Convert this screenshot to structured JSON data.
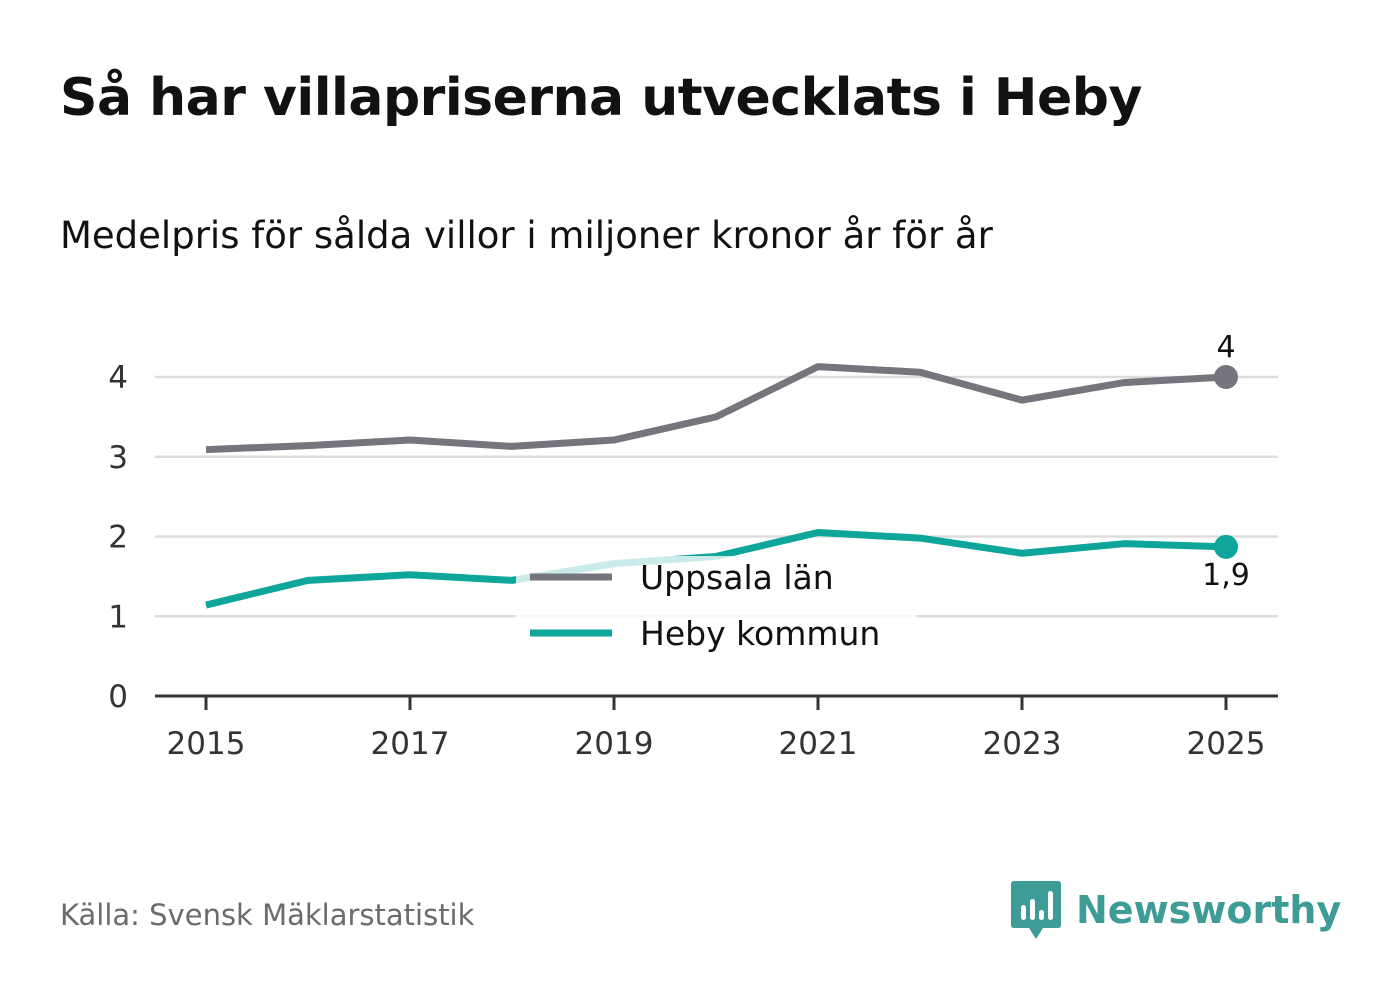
{
  "header": {
    "title": "Så har villapriserna utvecklats i Heby",
    "subtitle": "Medelpris för sålda villor i miljoner kronor år för år"
  },
  "footer": {
    "source": "Källa: Svensk Mäklarstatistik",
    "brand": "Newsworthy"
  },
  "colors": {
    "uppsala": "#75757d",
    "heby": "#0ea69a",
    "grid": "#dddddd",
    "axis": "#333333",
    "brand": "#3e9c96"
  },
  "chart_data": {
    "type": "line",
    "x": [
      2015,
      2016,
      2017,
      2018,
      2019,
      2020,
      2021,
      2022,
      2023,
      2024,
      2025
    ],
    "x_tick_labels": [
      "2015",
      "2017",
      "2019",
      "2021",
      "2023",
      "2025"
    ],
    "y_tick_labels": [
      "0",
      "1",
      "2",
      "3",
      "4"
    ],
    "ylim": [
      0,
      4.5
    ],
    "grid": true,
    "legend_position": "center-bottom",
    "series": [
      {
        "name": "Uppsala län",
        "color_key": "uppsala",
        "values": [
          3.09,
          3.14,
          3.21,
          3.13,
          3.21,
          3.5,
          4.13,
          4.06,
          3.71,
          3.93,
          4.0
        ],
        "end_label": "4"
      },
      {
        "name": "Heby kommun",
        "color_key": "heby",
        "values": [
          1.14,
          1.45,
          1.52,
          1.45,
          1.66,
          1.75,
          2.05,
          1.98,
          1.79,
          1.91,
          1.87
        ],
        "end_label": "1,9"
      }
    ]
  }
}
